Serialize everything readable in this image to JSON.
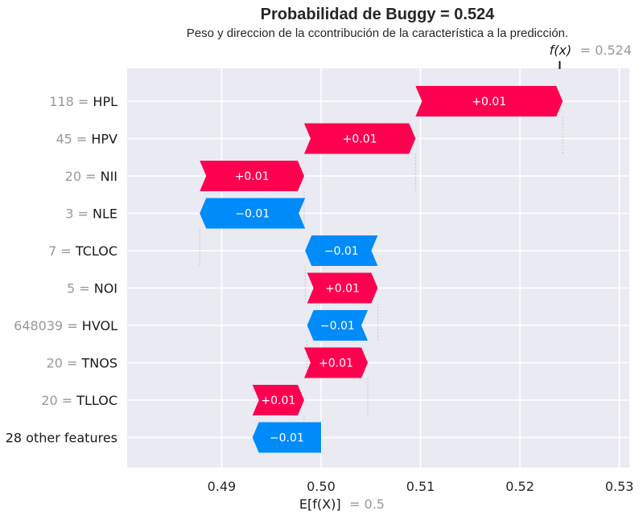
{
  "chart_data": {
    "type": "bar",
    "title": "Probabilidad de Buggy = 0.524",
    "subtitle": "Peso y direccion de la ccontribución de la característica a la predicción.",
    "base_value_label": "E[f(X)]",
    "base_value_text": "= 0.5",
    "base_value": 0.5,
    "output_label": "f(x)",
    "output_value_text": "= 0.524",
    "output_value": 0.524,
    "xlim": [
      0.4805,
      0.531
    ],
    "x_ticks": [
      0.49,
      0.5,
      0.51,
      0.52,
      0.53
    ],
    "x_tick_labels": [
      "0.49",
      "0.50",
      "0.51",
      "0.52",
      "0.53"
    ],
    "grid": true,
    "colors": {
      "positive": "#ff0051",
      "negative": "#008bfb",
      "background": "#eaeaf2",
      "grid": "#ffffff"
    },
    "features": [
      {
        "value": "118",
        "name": "HPL",
        "start": 0.5095,
        "end": 0.5243,
        "label": "+0.01"
      },
      {
        "value": "45",
        "name": "HPV",
        "start": 0.4983,
        "end": 0.5095,
        "label": "+0.01"
      },
      {
        "value": "20",
        "name": "NII",
        "start": 0.4878,
        "end": 0.4983,
        "label": "+0.01"
      },
      {
        "value": "3",
        "name": "NLE",
        "start": 0.4984,
        "end": 0.4878,
        "label": "−0.01"
      },
      {
        "value": "7",
        "name": "TCLOC",
        "start": 0.5057,
        "end": 0.4984,
        "label": "−0.01"
      },
      {
        "value": "5",
        "name": "NOI",
        "start": 0.4986,
        "end": 0.5057,
        "label": "+0.01"
      },
      {
        "value": "648039",
        "name": "HVOL",
        "start": 0.5047,
        "end": 0.4986,
        "label": "−0.01"
      },
      {
        "value": "20",
        "name": "TNOS",
        "start": 0.4983,
        "end": 0.5047,
        "label": "+0.01"
      },
      {
        "value": "20",
        "name": "TLLOC",
        "start": 0.4931,
        "end": 0.4983,
        "label": "+0.01"
      },
      {
        "value": "",
        "name": "28 other features",
        "start": 0.5,
        "end": 0.4931,
        "label": "−0.01"
      }
    ]
  }
}
